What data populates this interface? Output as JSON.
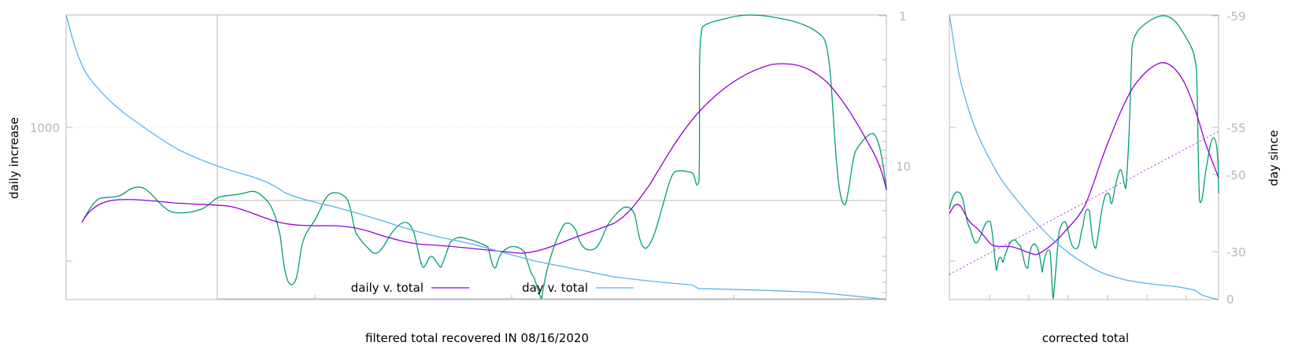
{
  "chart_data": [
    {
      "type": "line",
      "title": "",
      "xlabel": "filtered total recovered IN 08/16/2020",
      "ylabel": "daily increase",
      "y2_ticks": [
        "1",
        "10"
      ],
      "y_ticks": [
        "1000"
      ],
      "grid": "horizontal at 1000",
      "legend_position": "bottom-center",
      "legend": [
        "daily v. total",
        "day v. total"
      ],
      "colors": {
        "daily": "#9400d3",
        "day": "#56b4e9",
        "raw": "#009e73"
      },
      "series": [
        {
          "name": "daily v. total",
          "color": "#9400d3",
          "x": [
            0.02,
            0.05,
            0.08,
            0.12,
            0.18,
            0.25,
            0.3,
            0.35,
            0.4,
            0.45,
            0.5,
            0.55,
            0.6,
            0.65,
            0.7,
            0.75,
            0.8,
            0.85,
            0.9,
            0.95,
            1.0
          ],
          "y": [
            0.72,
            0.66,
            0.653,
            0.658,
            0.666,
            0.67,
            0.67,
            0.71,
            0.745,
            0.748,
            0.755,
            0.79,
            0.81,
            0.83,
            0.85,
            0.818,
            0.768,
            0.655,
            0.45,
            0.325,
            0.44
          ]
        },
        {
          "name": "day v. total",
          "color": "#56b4e9",
          "x": [
            0.0,
            0.03,
            0.07,
            0.12,
            0.18,
            0.25,
            0.3,
            0.35,
            0.4,
            0.45,
            0.5,
            0.55,
            0.6,
            0.65,
            0.7,
            0.76,
            0.8,
            0.85,
            0.9,
            0.95,
            1.0
          ],
          "y": [
            0.0,
            0.21,
            0.33,
            0.405,
            0.49,
            0.555,
            0.595,
            0.66,
            0.705,
            0.755,
            0.8,
            0.835,
            0.86,
            0.89,
            0.915,
            0.945,
            0.955,
            0.958,
            0.962,
            0.965,
            0.985
          ]
        }
      ]
    },
    {
      "type": "line",
      "title": "",
      "xlabel": "corrected total",
      "ylabel": "day since",
      "y2_ticks": [
        "-59",
        "-55",
        "-50",
        "-30",
        "0"
      ],
      "grid": "off",
      "series": [
        {
          "name": "",
          "color": "#9400d3",
          "x": [
            0.0,
            0.05,
            0.1,
            0.2,
            0.3,
            0.35,
            0.4,
            0.5,
            0.55,
            0.6,
            0.7,
            0.8,
            0.85,
            0.9,
            0.95,
            1.0
          ],
          "y": [
            0.72,
            0.67,
            0.765,
            0.815,
            0.825,
            0.835,
            0.79,
            0.72,
            0.53,
            0.34,
            0.28,
            0.17,
            0.22,
            0.32,
            0.47,
            0.63
          ]
        },
        {
          "name": "",
          "color": "#56b4e9",
          "x": [
            0.0,
            0.05,
            0.1,
            0.15,
            0.2,
            0.25,
            0.3,
            0.35,
            0.4,
            0.45,
            0.5,
            0.6,
            0.7,
            0.8,
            0.9,
            0.95,
            1.0
          ],
          "y": [
            0.0,
            0.3,
            0.46,
            0.6,
            0.67,
            0.72,
            0.77,
            0.81,
            0.86,
            0.9,
            0.93,
            0.95,
            0.96,
            0.967,
            0.98,
            0.99,
            0.995
          ]
        }
      ]
    }
  ]
}
